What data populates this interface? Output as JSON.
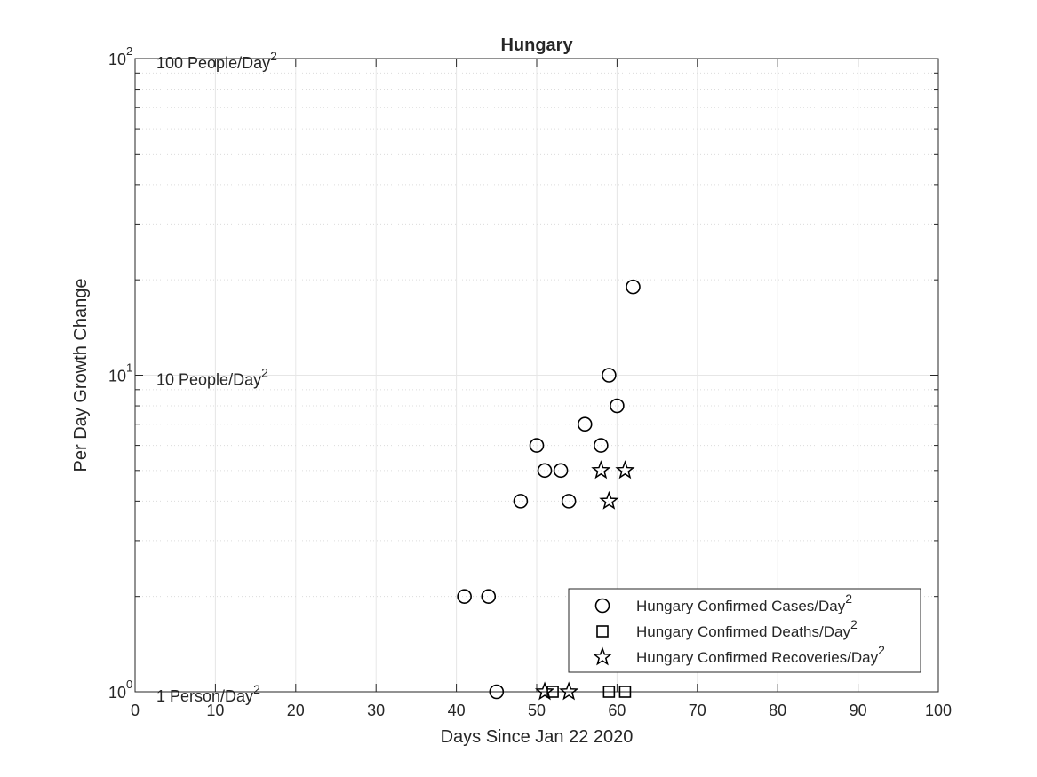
{
  "chart_data": {
    "type": "scatter",
    "title": "Hungary",
    "xlabel": "Days Since Jan 22 2020",
    "ylabel": "Per Day Growth Change",
    "xlim": [
      0,
      100
    ],
    "ylim": [
      1,
      100
    ],
    "yscale": "log",
    "grid": true,
    "minor_grid": true,
    "legend_position": "bottom-right",
    "x_ticks": [
      0,
      10,
      20,
      30,
      40,
      50,
      60,
      70,
      80,
      90,
      100
    ],
    "y_ticks": [
      {
        "value": 1,
        "base": "10",
        "exp": "0"
      },
      {
        "value": 10,
        "base": "10",
        "exp": "1"
      },
      {
        "value": 100,
        "base": "10",
        "exp": "2"
      }
    ],
    "reference_labels": [
      {
        "value": 100,
        "text": "100 People/Day",
        "sup": "2"
      },
      {
        "value": 10,
        "text": "10 People/Day",
        "sup": "2"
      },
      {
        "value": 1,
        "text": "1 Person/Day",
        "sup": "2"
      }
    ],
    "series": [
      {
        "name": "Hungary Confirmed Cases/Day",
        "name_sup": "2",
        "marker": "circle",
        "points": [
          {
            "x": 41,
            "y": 2
          },
          {
            "x": 44,
            "y": 2
          },
          {
            "x": 45,
            "y": 1
          },
          {
            "x": 48,
            "y": 4
          },
          {
            "x": 50,
            "y": 6
          },
          {
            "x": 51,
            "y": 5
          },
          {
            "x": 53,
            "y": 5
          },
          {
            "x": 54,
            "y": 4
          },
          {
            "x": 56,
            "y": 7
          },
          {
            "x": 58,
            "y": 6
          },
          {
            "x": 59,
            "y": 10
          },
          {
            "x": 60,
            "y": 8
          },
          {
            "x": 62,
            "y": 19
          }
        ]
      },
      {
        "name": "Hungary Confirmed Deaths/Day",
        "name_sup": "2",
        "marker": "square",
        "points": [
          {
            "x": 52,
            "y": 1
          },
          {
            "x": 59,
            "y": 1
          },
          {
            "x": 61,
            "y": 1
          }
        ]
      },
      {
        "name": "Hungary Confirmed Recoveries/Day",
        "name_sup": "2",
        "marker": "star",
        "points": [
          {
            "x": 51,
            "y": 1
          },
          {
            "x": 54,
            "y": 1
          },
          {
            "x": 58,
            "y": 5
          },
          {
            "x": 59,
            "y": 4
          },
          {
            "x": 61,
            "y": 5
          }
        ]
      }
    ]
  }
}
